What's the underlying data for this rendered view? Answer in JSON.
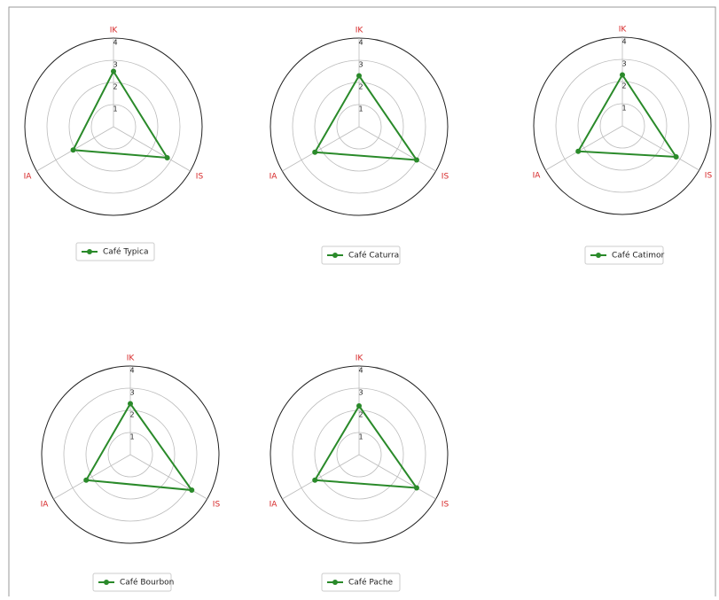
{
  "chart_data": [
    {
      "type": "radar",
      "categories": [
        "IK",
        "IS",
        "IA"
      ],
      "series": [
        {
          "name": "Café Typica",
          "color": "#2a8a2a",
          "values": [
            2.5,
            2.8,
            2.1
          ]
        }
      ],
      "ylim": [
        0,
        4
      ],
      "yticks": [
        1,
        2,
        3,
        4
      ],
      "grid": true,
      "axis_label_color": "#d62728"
    },
    {
      "type": "radar",
      "categories": [
        "IK",
        "IS",
        "IA"
      ],
      "series": [
        {
          "name": "Café Caturra",
          "color": "#2a8a2a",
          "values": [
            2.3,
            3.0,
            2.3
          ]
        }
      ],
      "ylim": [
        0,
        4
      ],
      "yticks": [
        1,
        2,
        3,
        4
      ],
      "grid": true,
      "axis_label_color": "#d62728"
    },
    {
      "type": "radar",
      "categories": [
        "IK",
        "IS",
        "IA"
      ],
      "series": [
        {
          "name": "Café Catimor",
          "color": "#2a8a2a",
          "values": [
            2.3,
            2.8,
            2.3
          ]
        }
      ],
      "ylim": [
        0,
        4
      ],
      "yticks": [
        1,
        2,
        3,
        4
      ],
      "grid": true,
      "axis_label_color": "#d62728"
    },
    {
      "type": "radar",
      "categories": [
        "IK",
        "IS",
        "IA"
      ],
      "series": [
        {
          "name": "Café Bourbon",
          "color": "#2a8a2a",
          "values": [
            2.3,
            3.2,
            2.3
          ]
        }
      ],
      "ylim": [
        0,
        4
      ],
      "yticks": [
        1,
        2,
        3,
        4
      ],
      "grid": true,
      "axis_label_color": "#d62728"
    },
    {
      "type": "radar",
      "categories": [
        "IK",
        "IS",
        "IA"
      ],
      "series": [
        {
          "name": "Café Pache",
          "color": "#2a8a2a",
          "values": [
            2.2,
            3.0,
            2.3
          ]
        }
      ],
      "ylim": [
        0,
        4
      ],
      "yticks": [
        1,
        2,
        3,
        4
      ],
      "grid": true,
      "axis_label_color": "#d62728"
    }
  ]
}
